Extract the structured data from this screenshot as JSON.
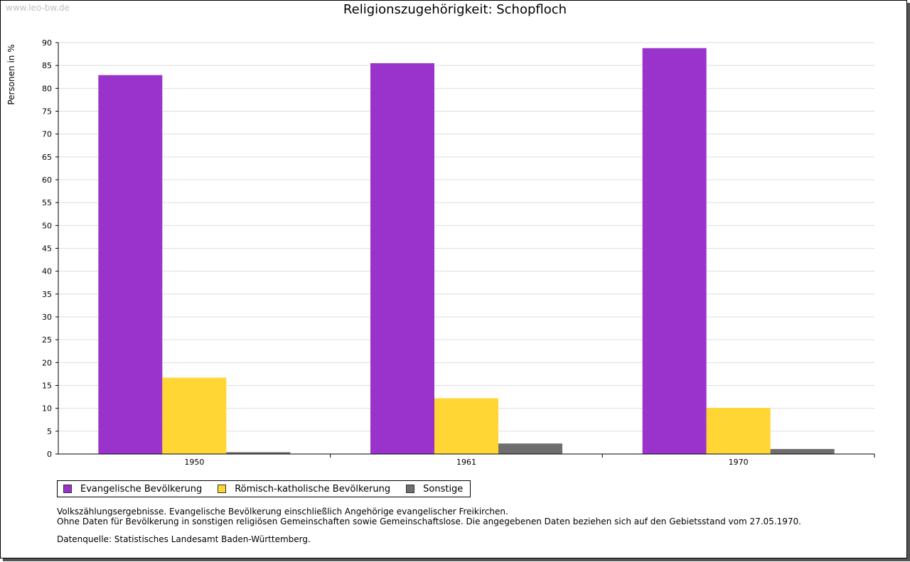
{
  "watermark": "www.leo-bw.de",
  "chart_data": {
    "type": "bar",
    "title": "Religionszugehörigkeit: Schopfloch",
    "ylabel": "Personen in %",
    "xlabel": "",
    "ylim": [
      0,
      90
    ],
    "yticks": [
      0,
      5,
      10,
      15,
      20,
      25,
      30,
      35,
      40,
      45,
      50,
      55,
      60,
      65,
      70,
      75,
      80,
      85,
      90
    ],
    "grid": true,
    "categories": [
      "1950",
      "1961",
      "1970"
    ],
    "series": [
      {
        "name": "Evangelische Bevölkerung",
        "color": "#9933cc",
        "values": [
          82.9,
          85.5,
          88.8
        ]
      },
      {
        "name": "Römisch-katholische Bevölkerung",
        "color": "#ffd633",
        "values": [
          16.7,
          12.2,
          10.1
        ]
      },
      {
        "name": "Sonstige",
        "color": "#6e6e6e",
        "values": [
          0.4,
          2.3,
          1.1
        ]
      }
    ]
  },
  "notes": {
    "line1": "Volkszählungsergebnisse. Evangelische Bevölkerung einschließlich Angehörige evangelischer Freikirchen.",
    "line2": "Ohne Daten für Bevölkerung in sonstigen religiösen Gemeinschaften sowie Gemeinschaftslose. Die angegebenen Daten beziehen sich auf den Gebietsstand vom 27.05.1970.",
    "source": "Datenquelle: Statistisches Landesamt Baden-Württemberg."
  }
}
